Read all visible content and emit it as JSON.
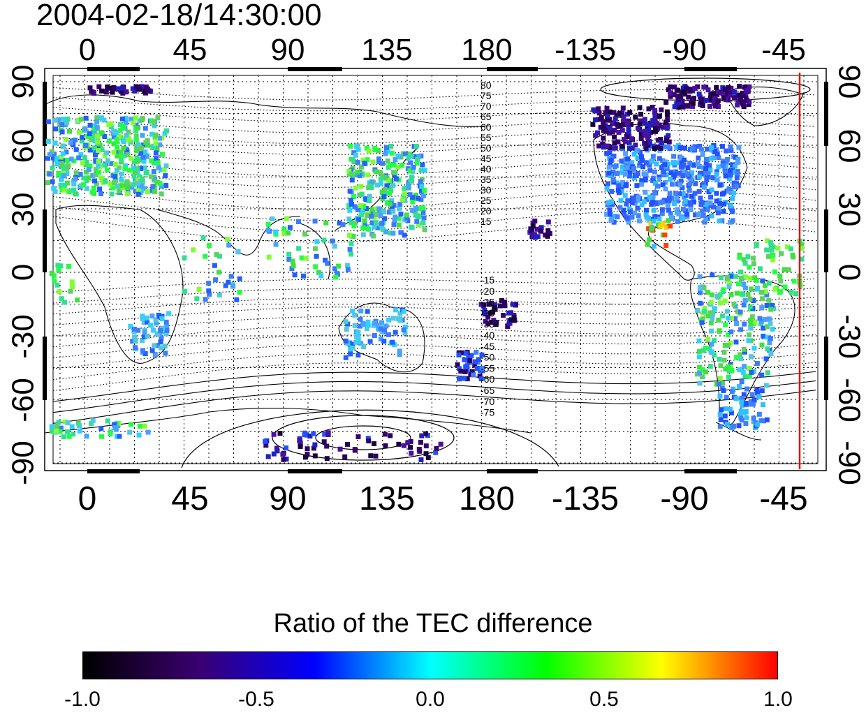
{
  "timestamp": "2004-02-18/14:30:00",
  "map": {
    "projection": "equirectangular",
    "top_axis_labels": [
      "0",
      "45",
      "90",
      "135",
      "180",
      "-135",
      "-90",
      "-45"
    ],
    "bottom_axis_labels": [
      "0",
      "45",
      "90",
      "135",
      "180",
      "-135",
      "-90",
      "-45"
    ],
    "left_axis_labels": [
      "90",
      "60",
      "30",
      "0",
      "-30",
      "-60",
      "-90"
    ],
    "right_axis_labels": [
      "90",
      "60",
      "30",
      "0",
      "-30",
      "-60",
      "-90"
    ],
    "contour_labels_north": [
      "80",
      "75",
      "70",
      "65",
      "60",
      "55",
      "50",
      "45",
      "40",
      "35",
      "30",
      "25",
      "20",
      "15"
    ],
    "contour_labels_south": [
      "-15",
      "-20",
      "-25",
      "-30",
      "-35",
      "-40",
      "-45",
      "-50",
      "-55",
      "-60",
      "-65",
      "-70",
      "-75"
    ],
    "meridian_marker_color": "#dd1111",
    "coastline_color": "#000000"
  },
  "colorbar": {
    "title": "Ratio of the TEC difference",
    "range": [
      -1.0,
      1.0
    ],
    "tick_labels": [
      "-1.0",
      "-0.5",
      "0.0",
      "0.5",
      "1.0"
    ],
    "colors": [
      "#000000",
      "#3a0070",
      "#0000ff",
      "#00ffff",
      "#00ff00",
      "#ffff00",
      "#ff0000"
    ]
  }
}
